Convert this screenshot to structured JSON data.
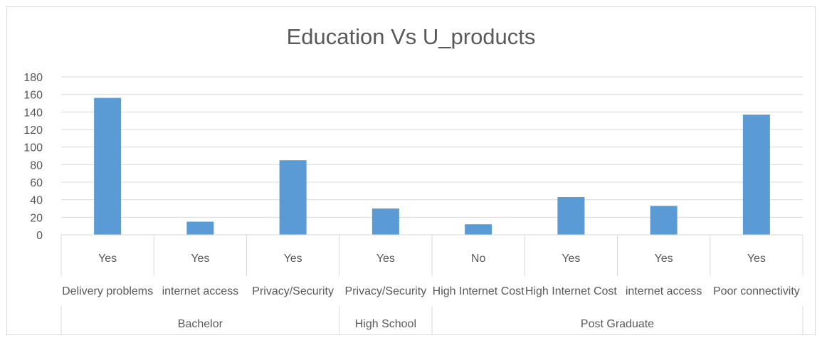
{
  "chart_data": {
    "type": "bar",
    "title": "Education Vs U_products",
    "xlabel": "",
    "ylabel": "",
    "ylim": [
      0,
      180
    ],
    "yticks": [
      0,
      20,
      40,
      60,
      80,
      100,
      120,
      140,
      160,
      180
    ],
    "grid": true,
    "legend": "none",
    "bar_color": "#5b9bd5",
    "categories": [
      {
        "answer": "Yes",
        "reason": "Delivery problems",
        "education": "Bachelor"
      },
      {
        "answer": "Yes",
        "reason": "internet access",
        "education": "Bachelor"
      },
      {
        "answer": "Yes",
        "reason": "Privacy/Security",
        "education": "Bachelor"
      },
      {
        "answer": "Yes",
        "reason": "Privacy/Security",
        "education": "High School"
      },
      {
        "answer": "No",
        "reason": "High Internet Cost",
        "education": "Post Graduate"
      },
      {
        "answer": "Yes",
        "reason": "High Internet Cost",
        "education": "Post Graduate"
      },
      {
        "answer": "Yes",
        "reason": "internet access",
        "education": "Post Graduate"
      },
      {
        "answer": "Yes",
        "reason": "Poor connectivity",
        "education": "Post Graduate"
      }
    ],
    "values": [
      156,
      15,
      85,
      30,
      12,
      43,
      33,
      137
    ],
    "groups": [
      {
        "label": "Bachelor",
        "count": 3
      },
      {
        "label": "High School",
        "count": 1
      },
      {
        "label": "Post Graduate",
        "count": 4
      }
    ]
  }
}
